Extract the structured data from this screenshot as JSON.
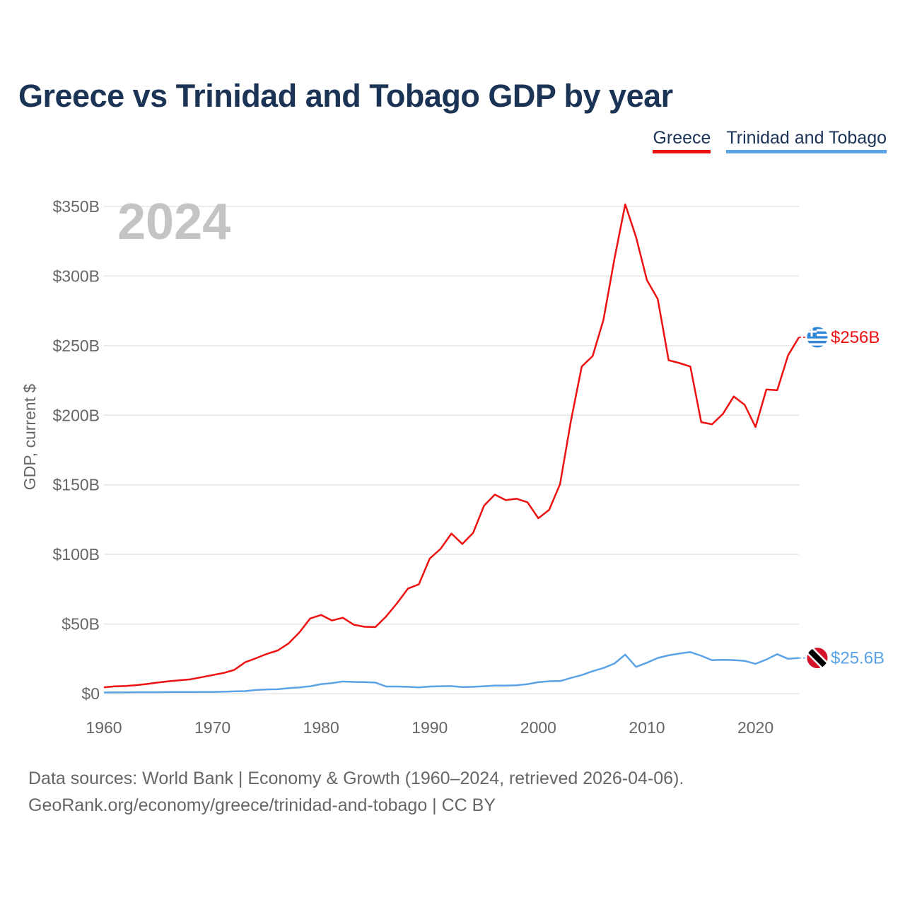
{
  "title": "Greece vs Trinidad and Tobago GDP by year",
  "legend": [
    {
      "label": "Greece",
      "color": "#ee1111"
    },
    {
      "label": "Trinidad and Tobago",
      "color": "#5ba3e6"
    }
  ],
  "year_label": "2024",
  "footer": {
    "line1": "Data sources: World Bank | Economy & Growth (1960–2024, retrieved 2026-04-06).",
    "line2": "GeoRank.org/economy/greece/trinidad-and-tobago | CC BY"
  },
  "chart_data": {
    "type": "line",
    "title": "Greece vs Trinidad and Tobago GDP by year",
    "xlabel": "",
    "ylabel": "GDP, current $",
    "xlim": [
      1960,
      2024
    ],
    "ylim": [
      0,
      350
    ],
    "yunit": "billions USD",
    "x_ticks": [
      1960,
      1970,
      1980,
      1990,
      2000,
      2010,
      2020
    ],
    "y_ticks": [
      {
        "value": 0,
        "label": "$0"
      },
      {
        "value": 50,
        "label": "$50B"
      },
      {
        "value": 100,
        "label": "$100B"
      },
      {
        "value": 150,
        "label": "$150B"
      },
      {
        "value": 200,
        "label": "$200B"
      },
      {
        "value": 250,
        "label": "$250B"
      },
      {
        "value": 300,
        "label": "$300B"
      },
      {
        "value": 350,
        "label": "$350B"
      }
    ],
    "grid": true,
    "legend_position": "top-right",
    "x": [
      1960,
      1961,
      1962,
      1963,
      1964,
      1965,
      1966,
      1967,
      1968,
      1969,
      1970,
      1971,
      1972,
      1973,
      1974,
      1975,
      1976,
      1977,
      1978,
      1979,
      1980,
      1981,
      1982,
      1983,
      1984,
      1985,
      1986,
      1987,
      1988,
      1989,
      1990,
      1991,
      1992,
      1993,
      1994,
      1995,
      1996,
      1997,
      1998,
      1999,
      2000,
      2001,
      2002,
      2003,
      2004,
      2005,
      2006,
      2007,
      2008,
      2009,
      2010,
      2011,
      2012,
      2013,
      2014,
      2015,
      2016,
      2017,
      2018,
      2019,
      2020,
      2021,
      2022,
      2023,
      2024
    ],
    "series": [
      {
        "name": "Greece",
        "color": "#ee1111",
        "end_label": "$256B",
        "values": [
          4.5,
          5.2,
          5.5,
          6.1,
          6.9,
          8.0,
          8.9,
          9.6,
          10.3,
          11.8,
          13.3,
          14.8,
          17.0,
          22.5,
          25.4,
          28.5,
          31.0,
          36.0,
          44.0,
          54.0,
          56.5,
          52.5,
          54.5,
          49.5,
          48.0,
          47.8,
          55.5,
          65.0,
          75.5,
          78.5,
          97.0,
          104.0,
          115.0,
          107.5,
          115.5,
          135.0,
          143.0,
          139.0,
          140.0,
          137.5,
          126.0,
          132.0,
          150.5,
          196.0,
          235.0,
          242.5,
          268.5,
          312.0,
          351.5,
          328.0,
          297.0,
          283.5,
          239.5,
          237.5,
          235.0,
          195.0,
          193.5,
          201.0,
          213.5,
          207.5,
          191.5,
          218.5,
          218.0,
          243.0,
          256.0
        ]
      },
      {
        "name": "Trinidad and Tobago",
        "color": "#5ba3e6",
        "end_label": "$25.6B",
        "values": [
          0.8,
          0.9,
          0.9,
          1.0,
          1.0,
          1.0,
          1.1,
          1.1,
          1.1,
          1.2,
          1.2,
          1.3,
          1.6,
          1.8,
          2.6,
          3.0,
          3.1,
          3.9,
          4.4,
          5.3,
          6.8,
          7.5,
          8.7,
          8.4,
          8.3,
          7.9,
          5.1,
          5.1,
          4.9,
          4.4,
          5.1,
          5.3,
          5.4,
          4.7,
          4.9,
          5.3,
          5.8,
          5.8,
          6.0,
          6.8,
          8.2,
          8.9,
          9.0,
          11.3,
          13.3,
          16.1,
          18.4,
          21.6,
          28.0,
          19.2,
          22.2,
          25.6,
          27.5,
          28.8,
          29.8,
          27.2,
          24.0,
          24.3,
          24.1,
          23.5,
          21.4,
          24.5,
          28.3,
          25.0,
          25.6
        ]
      }
    ]
  }
}
